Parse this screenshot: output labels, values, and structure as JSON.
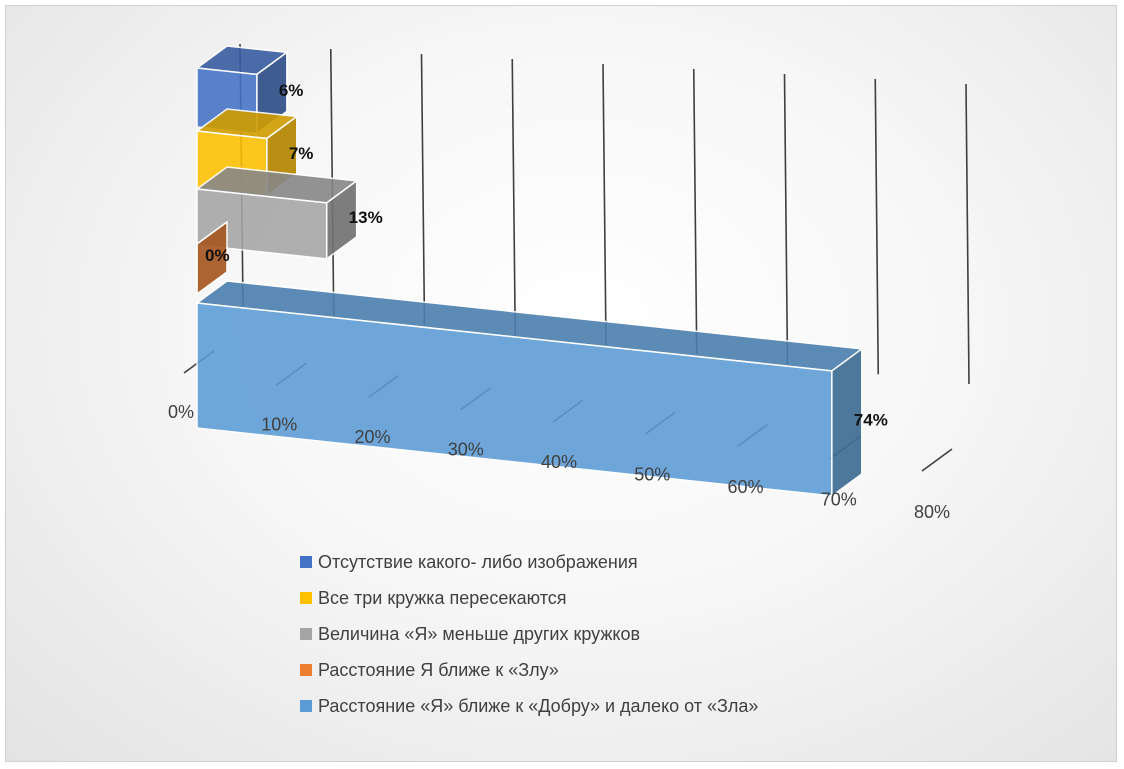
{
  "chart_data": {
    "type": "bar",
    "orientation": "horizontal",
    "three_d": true,
    "title": "",
    "xlabel": "",
    "ylabel": "",
    "xlim": [
      0,
      80
    ],
    "x_tick_labels": [
      "0%",
      "10%",
      "20%",
      "30%",
      "40%",
      "50%",
      "60%",
      "70%",
      "80%"
    ],
    "grid": true,
    "legend_position": "bottom",
    "categories": [
      "Отсутствие какого- либо изображения",
      "Все три кружка пересекаются",
      "Величина «Я» меньше других кружков",
      "Расстояние Я ближе к «Злу»",
      "Расстояние «Я» ближе к «Добру» и далеко от «Зла»"
    ],
    "values": [
      6,
      7,
      13,
      0,
      74
    ],
    "data_labels": [
      "6%",
      "7%",
      "13%",
      "0%",
      "74%"
    ],
    "colors": [
      "#4472C4",
      "#FFC000",
      "#A5A5A5",
      "#ED7D31",
      "#5B9BD5"
    ]
  }
}
